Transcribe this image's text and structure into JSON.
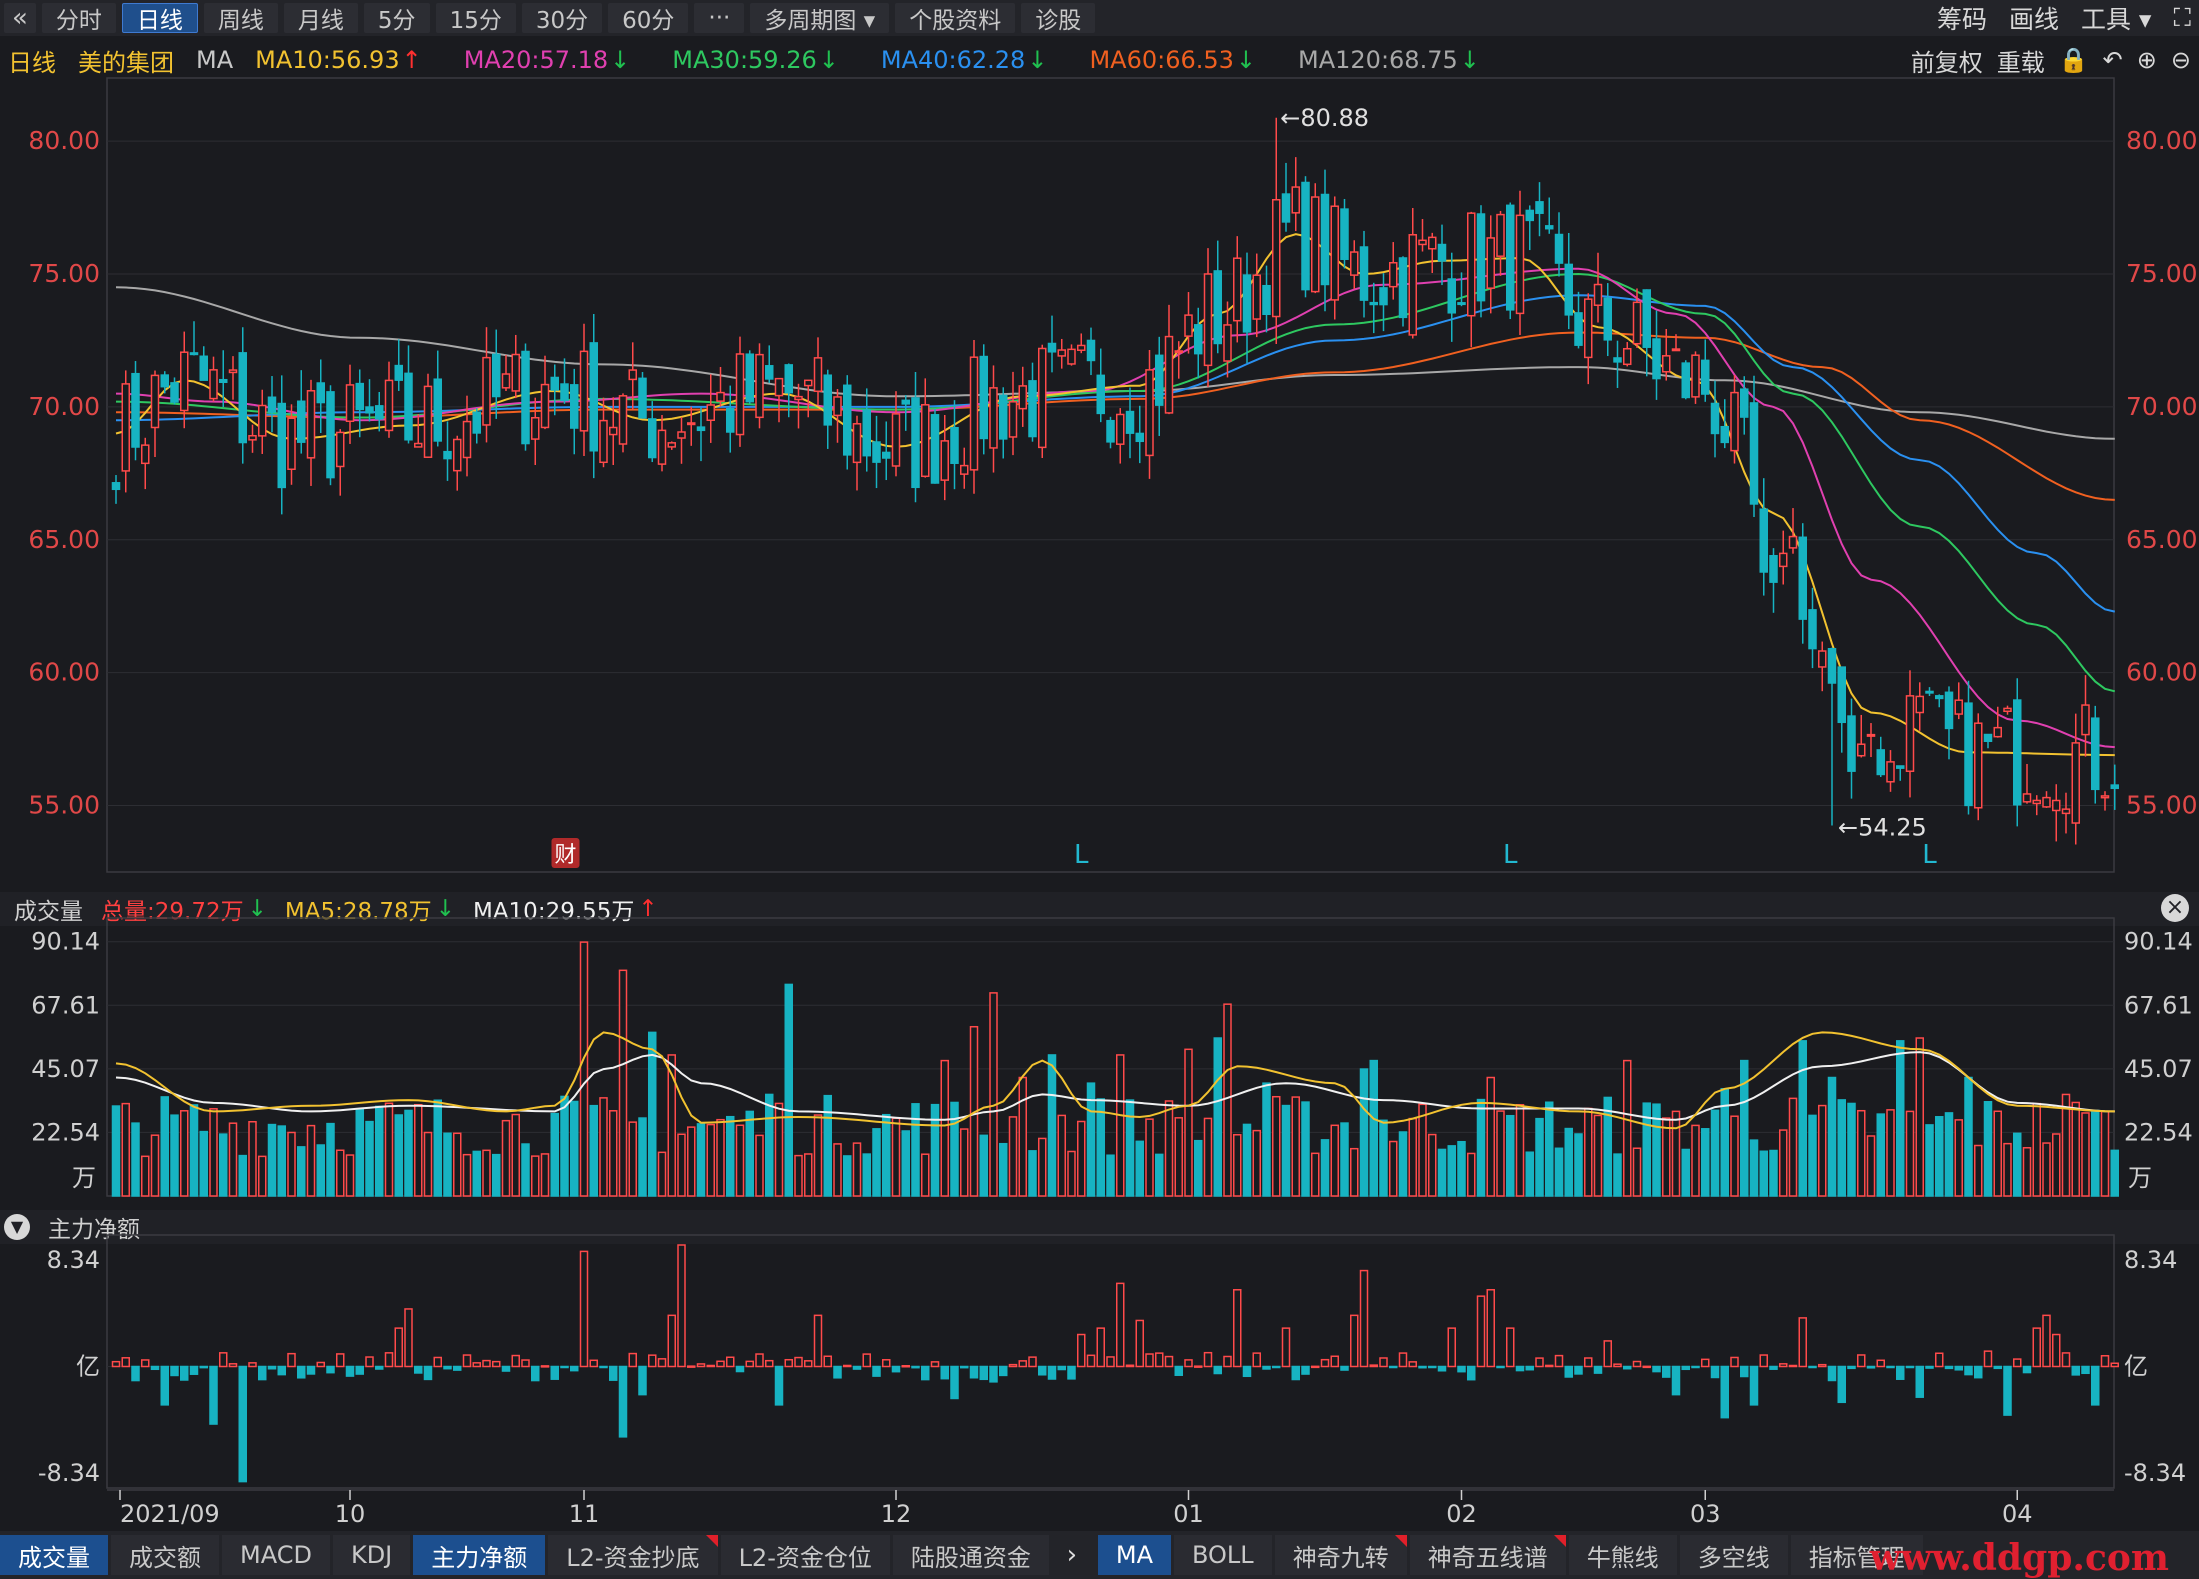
{
  "toolbar": {
    "back_icon": "«",
    "periods": [
      "分时",
      "日线",
      "周线",
      "月线",
      "5分",
      "15分",
      "30分",
      "60分",
      "···",
      "多周期图 ▾",
      "个股资料",
      "诊股"
    ],
    "active_period": "日线",
    "right": [
      "筹码",
      "画线",
      "工具 ▾",
      "⛶"
    ]
  },
  "ma_bar": {
    "period": "日线",
    "stock": "美的集团",
    "label": "MA",
    "items": [
      {
        "text": "MA10:56.93",
        "arrow": "↑",
        "color": "#f2c230",
        "arrow_color": "#ff3030"
      },
      {
        "text": "MA20:57.18",
        "arrow": "↓",
        "color": "#e040b0",
        "arrow_color": "#20c050"
      },
      {
        "text": "MA30:59.26",
        "arrow": "↓",
        "color": "#2ec860",
        "arrow_color": "#20c050"
      },
      {
        "text": "MA40:62.28",
        "arrow": "↓",
        "color": "#2a90f0",
        "arrow_color": "#20c050"
      },
      {
        "text": "MA60:66.53",
        "arrow": "↓",
        "color": "#f06020",
        "arrow_color": "#20c050"
      },
      {
        "text": "MA120:68.75",
        "arrow": "↓",
        "color": "#a8a8a8",
        "arrow_color": "#20c050"
      }
    ],
    "controls": [
      "前复权",
      "重载",
      "🔒",
      "↶",
      "⊕",
      "⊖"
    ]
  },
  "volume_head": {
    "title": "成交量",
    "total": "总量:29.72万",
    "ma5": "MA5:28.78万",
    "ma10": "MA10:29.55万"
  },
  "flow_head": {
    "title": "主力净额"
  },
  "bottom_tabs_left": [
    {
      "label": "成交量",
      "active": true,
      "flag": false
    },
    {
      "label": "成交额",
      "active": false,
      "flag": false
    },
    {
      "label": "MACD",
      "active": false,
      "flag": false
    },
    {
      "label": "KDJ",
      "active": false,
      "flag": false
    },
    {
      "label": "主力净额",
      "active": true,
      "flag": false
    },
    {
      "label": "L2-资金抄底",
      "active": false,
      "flag": true
    },
    {
      "label": "L2-资金仓位",
      "active": false,
      "flag": false
    },
    {
      "label": "陆股通资金",
      "active": false,
      "flag": false
    }
  ],
  "bottom_tabs_right": [
    {
      "label": "MA",
      "active": true,
      "flag": false
    },
    {
      "label": "BOLL",
      "active": false,
      "flag": false
    },
    {
      "label": "神奇九转",
      "active": false,
      "flag": true
    },
    {
      "label": "神奇五线谱",
      "active": false,
      "flag": true
    },
    {
      "label": "牛熊线",
      "active": false,
      "flag": false
    },
    {
      "label": "多空线",
      "active": false,
      "flag": false
    },
    {
      "label": "指标管理",
      "active": false,
      "flag": false
    }
  ],
  "watermark": "www.ddgp.com",
  "chart_data": {
    "type": "candlestick",
    "price_axis": {
      "ticks": [
        "80.00",
        "75.00",
        "70.00",
        "65.00",
        "60.00",
        "55.00"
      ],
      "ylim": [
        52.5,
        82.0
      ]
    },
    "annotations": {
      "high": "←80.88",
      "low": "←54.25",
      "markers": [
        {
          "text": "财",
          "date": "2021-11-07"
        },
        {
          "text": "L",
          "date": "2021-12-20"
        },
        {
          "text": "L",
          "date": "2022-02-10"
        },
        {
          "text": "L",
          "date": "2022-03-28"
        }
      ]
    },
    "volume_axis": {
      "ticks": [
        "90.14",
        "67.61",
        "45.07",
        "22.54"
      ],
      "unit": "万",
      "ylim": [
        0,
        95
      ]
    },
    "flow_axis": {
      "ticks": [
        "8.34",
        "-8.34"
      ],
      "unit": "亿",
      "ylim": [
        -9.5,
        9.5
      ]
    },
    "x_labels": [
      "2021/09",
      "10",
      "11",
      "12",
      "01",
      "02",
      "03",
      "04"
    ],
    "x_label_index": [
      0,
      24,
      48,
      80,
      110,
      138,
      163,
      195
    ],
    "ma_colors": {
      "MA10": "#f2c230",
      "MA20": "#e040b0",
      "MA30": "#2ec860",
      "MA40": "#2a90f0",
      "MA60": "#f06020",
      "MA120": "#a8a8a8"
    },
    "ma_paths": {
      "MA120": [
        [
          0,
          74.5
        ],
        [
          25,
          72.6
        ],
        [
          50,
          71.6
        ],
        [
          80,
          70.4
        ],
        [
          105,
          70.6
        ],
        [
          125,
          71.2
        ],
        [
          150,
          71.5
        ],
        [
          165,
          71.0
        ],
        [
          185,
          69.8
        ],
        [
          205,
          68.8
        ]
      ],
      "MA60": [
        [
          0,
          69.8
        ],
        [
          25,
          69.6
        ],
        [
          50,
          69.9
        ],
        [
          80,
          69.9
        ],
        [
          105,
          70.3
        ],
        [
          125,
          71.3
        ],
        [
          150,
          72.8
        ],
        [
          163,
          72.6
        ],
        [
          175,
          71.5
        ],
        [
          185,
          69.5
        ],
        [
          205,
          66.5
        ]
      ],
      "MA40": [
        [
          0,
          69.5
        ],
        [
          25,
          69.8
        ],
        [
          50,
          70.0
        ],
        [
          80,
          70.0
        ],
        [
          105,
          70.4
        ],
        [
          125,
          72.5
        ],
        [
          150,
          74.2
        ],
        [
          163,
          73.8
        ],
        [
          172,
          71.5
        ],
        [
          185,
          68.0
        ],
        [
          197,
          64.5
        ],
        [
          205,
          62.3
        ]
      ],
      "MA30": [
        [
          0,
          70.2
        ],
        [
          25,
          69.6
        ],
        [
          50,
          70.3
        ],
        [
          80,
          69.9
        ],
        [
          105,
          70.6
        ],
        [
          125,
          73.1
        ],
        [
          150,
          75.0
        ],
        [
          163,
          73.5
        ],
        [
          172,
          70.5
        ],
        [
          185,
          65.5
        ],
        [
          197,
          61.8
        ],
        [
          205,
          59.3
        ]
      ],
      "MA20": [
        [
          0,
          70.5
        ],
        [
          10,
          70.2
        ],
        [
          25,
          69.5
        ],
        [
          45,
          70.2
        ],
        [
          60,
          70.5
        ],
        [
          80,
          69.8
        ],
        [
          100,
          70.6
        ],
        [
          115,
          72.7
        ],
        [
          130,
          74.6
        ],
        [
          150,
          75.2
        ],
        [
          160,
          73.5
        ],
        [
          170,
          70.0
        ],
        [
          180,
          63.5
        ],
        [
          195,
          58.2
        ],
        [
          205,
          57.2
        ]
      ],
      "MA10": [
        [
          0,
          69.0
        ],
        [
          7,
          71.0
        ],
        [
          18,
          68.8
        ],
        [
          30,
          69.3
        ],
        [
          45,
          70.6
        ],
        [
          55,
          69.5
        ],
        [
          68,
          70.5
        ],
        [
          80,
          68.5
        ],
        [
          93,
          70.4
        ],
        [
          105,
          70.8
        ],
        [
          113,
          73.5
        ],
        [
          121,
          76.5
        ],
        [
          128,
          75.0
        ],
        [
          136,
          75.5
        ],
        [
          144,
          75.6
        ],
        [
          152,
          73.0
        ],
        [
          162,
          71.0
        ],
        [
          170,
          66.0
        ],
        [
          180,
          58.5
        ],
        [
          190,
          57.0
        ],
        [
          205,
          56.9
        ]
      ]
    },
    "vol_ma5": [
      [
        0,
        47
      ],
      [
        10,
        30
      ],
      [
        20,
        32
      ],
      [
        30,
        34
      ],
      [
        40,
        30
      ],
      [
        45,
        32
      ],
      [
        50,
        58
      ],
      [
        55,
        52
      ],
      [
        60,
        26
      ],
      [
        70,
        28
      ],
      [
        85,
        25
      ],
      [
        90,
        32
      ],
      [
        95,
        48
      ],
      [
        100,
        30
      ],
      [
        105,
        28
      ],
      [
        110,
        32
      ],
      [
        115,
        46
      ],
      [
        125,
        40
      ],
      [
        130,
        26
      ],
      [
        140,
        33
      ],
      [
        150,
        30
      ],
      [
        160,
        24
      ],
      [
        165,
        38
      ],
      [
        175,
        58
      ],
      [
        185,
        52
      ],
      [
        195,
        32
      ],
      [
        205,
        30
      ]
    ],
    "vol_ma10": [
      [
        0,
        42
      ],
      [
        10,
        33
      ],
      [
        20,
        30
      ],
      [
        30,
        32
      ],
      [
        45,
        30
      ],
      [
        50,
        45
      ],
      [
        55,
        50
      ],
      [
        60,
        40
      ],
      [
        70,
        30
      ],
      [
        85,
        27
      ],
      [
        90,
        30
      ],
      [
        95,
        36
      ],
      [
        100,
        34
      ],
      [
        110,
        32
      ],
      [
        120,
        40
      ],
      [
        130,
        34
      ],
      [
        140,
        31
      ],
      [
        150,
        31
      ],
      [
        160,
        27
      ],
      [
        165,
        32
      ],
      [
        175,
        46
      ],
      [
        185,
        51
      ],
      [
        195,
        33
      ],
      [
        205,
        30
      ]
    ]
  }
}
